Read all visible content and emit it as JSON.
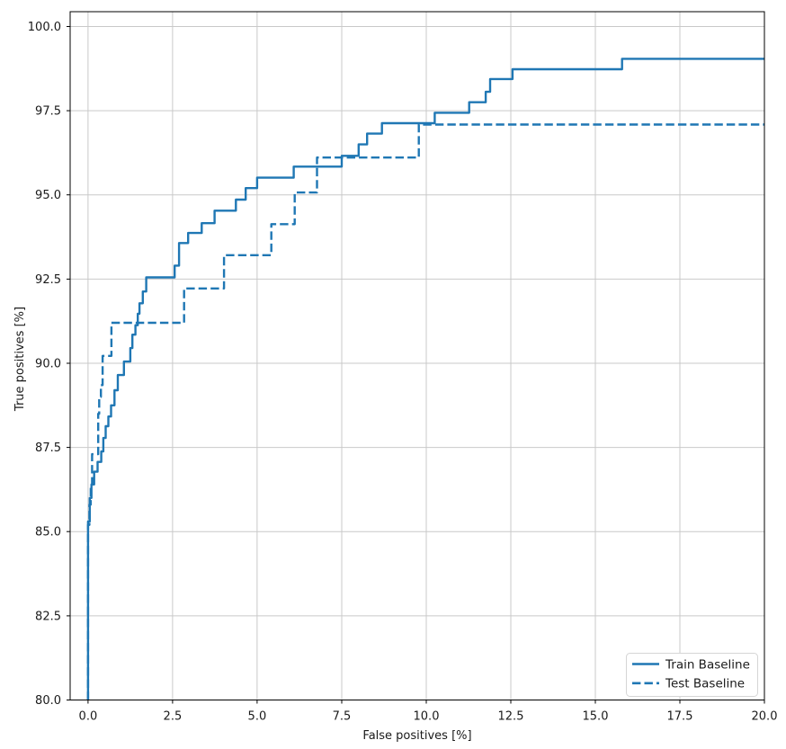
{
  "chart_data": {
    "type": "line",
    "subtype": "roc-step-curves",
    "title": "",
    "xlabel": "False positives [%]",
    "ylabel": "True positives [%]",
    "xlim": [
      -0.53,
      20.0
    ],
    "ylim": [
      80.0,
      100.44
    ],
    "grid": true,
    "legend_position": "lower right",
    "accent_color": "#1f77b4",
    "grid_color": "#c9c9c9",
    "spine_color": "#000000",
    "x_ticks": [
      {
        "value": 0.0,
        "label": "0.0"
      },
      {
        "value": 2.5,
        "label": "2.5"
      },
      {
        "value": 5.0,
        "label": "5.0"
      },
      {
        "value": 7.5,
        "label": "7.5"
      },
      {
        "value": 10.0,
        "label": "10.0"
      },
      {
        "value": 12.5,
        "label": "12.5"
      },
      {
        "value": 15.0,
        "label": "15.0"
      },
      {
        "value": 17.5,
        "label": "17.5"
      },
      {
        "value": 20.0,
        "label": "20.0"
      }
    ],
    "y_ticks": [
      {
        "value": 80.0,
        "label": "80.0"
      },
      {
        "value": 82.5,
        "label": "82.5"
      },
      {
        "value": 85.0,
        "label": "85.0"
      },
      {
        "value": 87.5,
        "label": "87.5"
      },
      {
        "value": 90.0,
        "label": "90.0"
      },
      {
        "value": 92.5,
        "label": "92.5"
      },
      {
        "value": 95.0,
        "label": "95.0"
      },
      {
        "value": 97.5,
        "label": "97.5"
      },
      {
        "value": 100.0,
        "label": "100.0"
      }
    ],
    "series": [
      {
        "name": "Train Baseline",
        "line_style": "solid",
        "color": "#1f77b4",
        "step_mode": "h-then-v",
        "points": [
          [
            0.0,
            80.0
          ],
          [
            0.0,
            85.3
          ],
          [
            0.05,
            86.0
          ],
          [
            0.1,
            86.4
          ],
          [
            0.18,
            86.78
          ],
          [
            0.28,
            87.07
          ],
          [
            0.39,
            87.38
          ],
          [
            0.45,
            87.78
          ],
          [
            0.52,
            88.13
          ],
          [
            0.6,
            88.42
          ],
          [
            0.68,
            88.75
          ],
          [
            0.78,
            89.2
          ],
          [
            0.88,
            89.65
          ],
          [
            1.06,
            90.05
          ],
          [
            1.25,
            90.45
          ],
          [
            1.31,
            90.85
          ],
          [
            1.4,
            91.13
          ],
          [
            1.47,
            91.47
          ],
          [
            1.52,
            91.78
          ],
          [
            1.62,
            92.13
          ],
          [
            1.72,
            92.55
          ],
          [
            2.56,
            92.9
          ],
          [
            2.69,
            93.57
          ],
          [
            2.96,
            93.87
          ],
          [
            3.36,
            94.16
          ],
          [
            3.74,
            94.53
          ],
          [
            4.37,
            94.86
          ],
          [
            4.66,
            95.2
          ],
          [
            5.0,
            95.51
          ],
          [
            6.08,
            95.84
          ],
          [
            7.5,
            96.16
          ],
          [
            8.0,
            96.5
          ],
          [
            8.25,
            96.82
          ],
          [
            8.69,
            97.13
          ],
          [
            10.25,
            97.44
          ],
          [
            11.27,
            97.75
          ],
          [
            11.76,
            98.06
          ],
          [
            11.89,
            98.44
          ],
          [
            12.55,
            98.73
          ],
          [
            15.79,
            99.04
          ],
          [
            20.0,
            99.04
          ]
        ]
      },
      {
        "name": "Test Baseline",
        "line_style": "dashed",
        "color": "#1f77b4",
        "step_mode": "h-then-v",
        "points": [
          [
            0.0,
            80.0
          ],
          [
            0.0,
            85.2
          ],
          [
            0.04,
            85.8
          ],
          [
            0.08,
            86.35
          ],
          [
            0.12,
            87.3
          ],
          [
            0.3,
            88.5
          ],
          [
            0.33,
            89.0
          ],
          [
            0.38,
            89.35
          ],
          [
            0.43,
            90.22
          ],
          [
            0.69,
            91.2
          ],
          [
            2.84,
            92.22
          ],
          [
            4.02,
            93.21
          ],
          [
            5.42,
            94.13
          ],
          [
            6.11,
            95.07
          ],
          [
            6.77,
            96.11
          ],
          [
            9.78,
            97.09
          ],
          [
            20.0,
            97.09
          ]
        ]
      }
    ]
  }
}
